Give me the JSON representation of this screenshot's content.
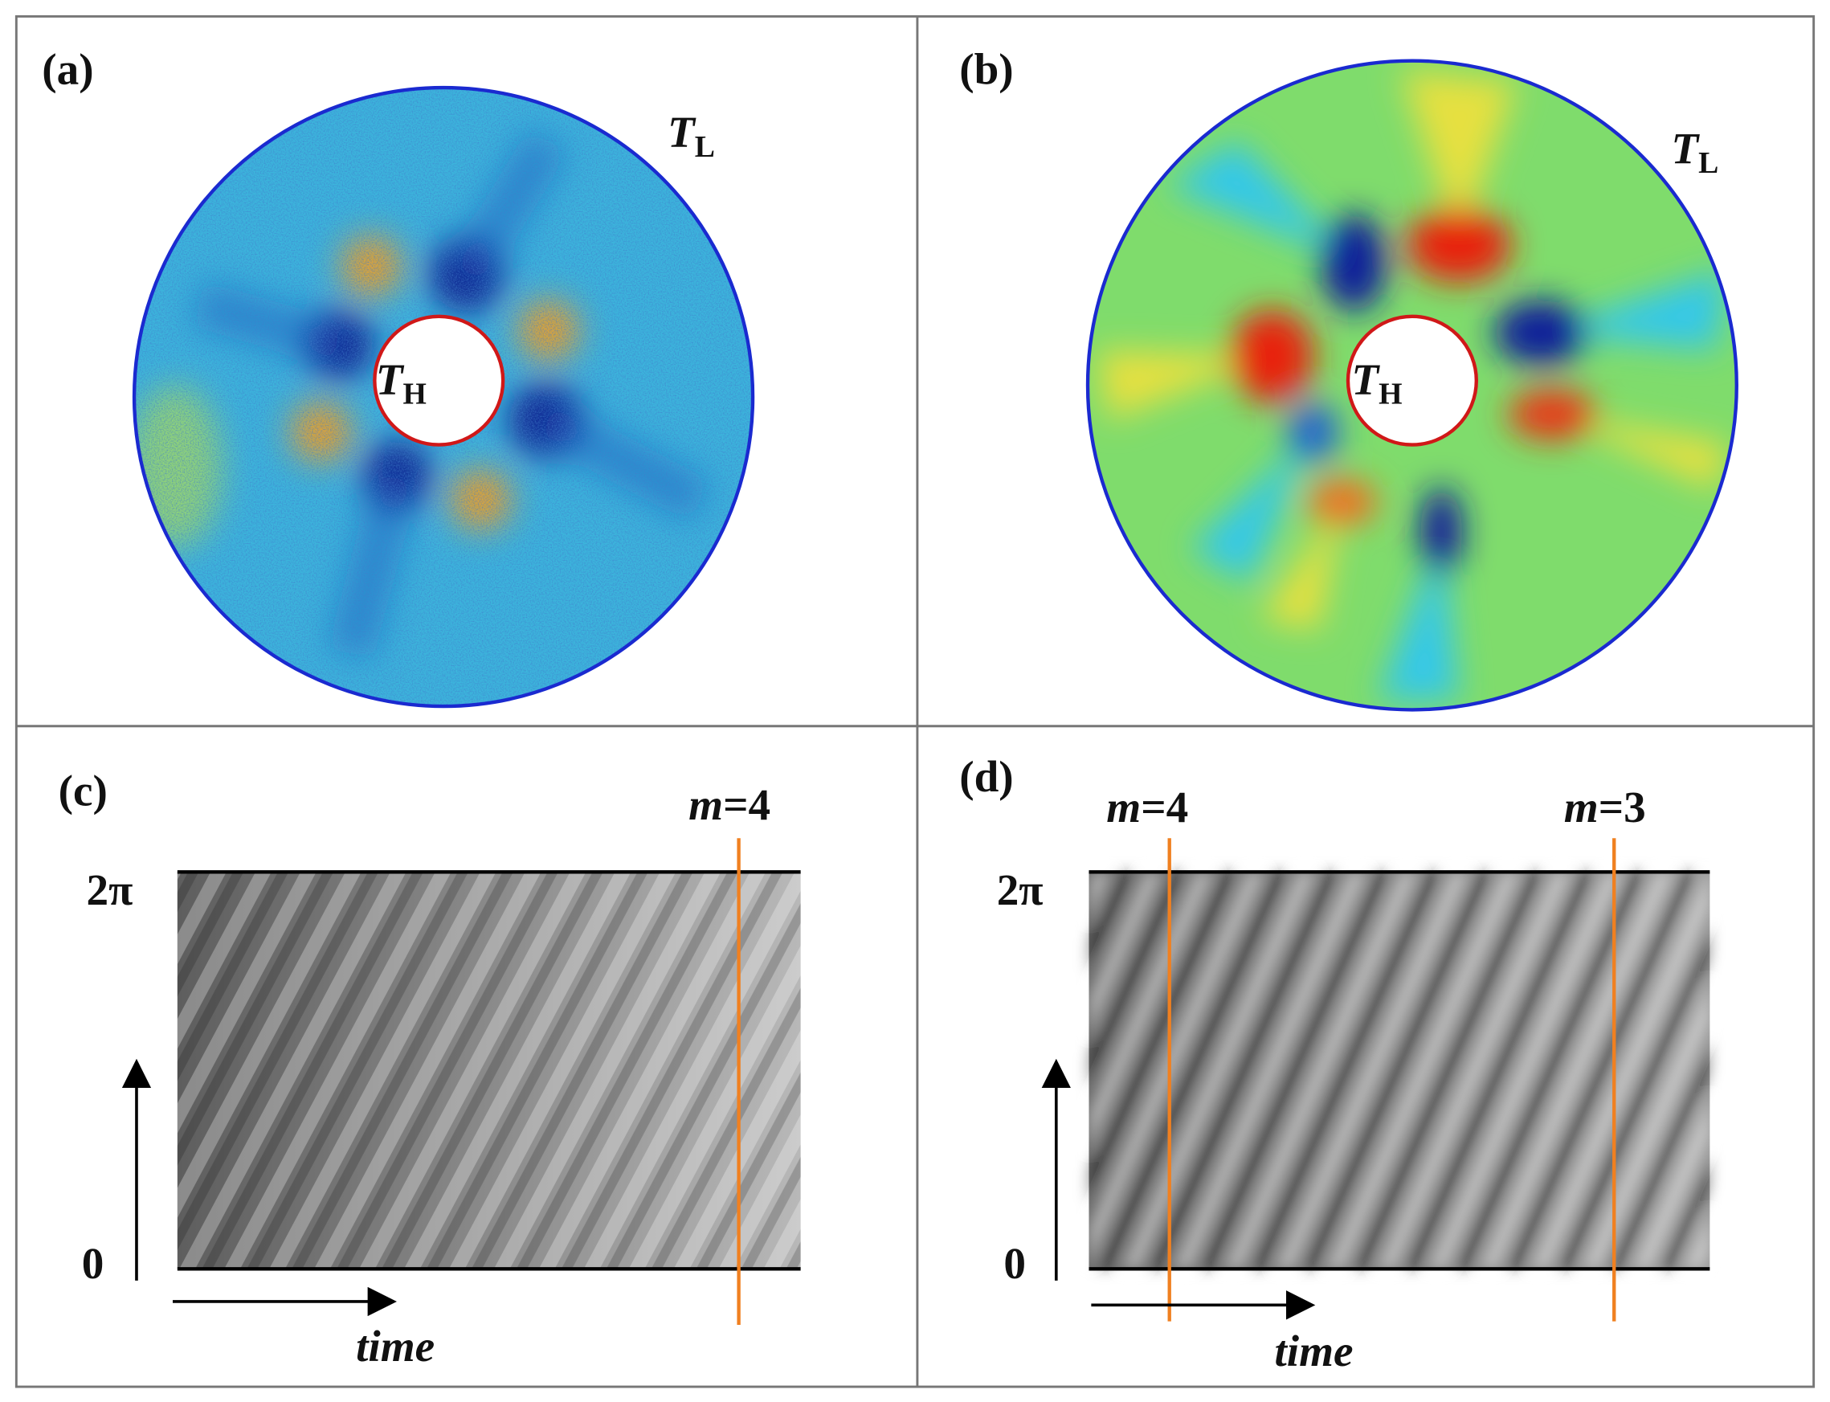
{
  "panels": [
    {
      "label": "(a)",
      "outer_label": {
        "symbol": "T",
        "subscript": "L"
      },
      "inner_label": {
        "symbol": "T",
        "subscript": "H"
      }
    },
    {
      "label": "(b)",
      "outer_label": {
        "symbol": "T",
        "subscript": "L"
      },
      "inner_label": {
        "symbol": "T",
        "subscript": "H"
      }
    },
    {
      "label": "(c)",
      "markers": [
        {
          "symbol": "m",
          "value": "=4"
        }
      ],
      "axis_top": "2π",
      "axis_bottom": "0",
      "axis_label": "time"
    },
    {
      "label": "(d)",
      "markers": [
        {
          "symbol": "m",
          "value": "=4"
        },
        {
          "symbol": "m",
          "value": "=3"
        }
      ],
      "axis_top": "2π",
      "axis_bottom": "0",
      "axis_label": "time"
    }
  ]
}
